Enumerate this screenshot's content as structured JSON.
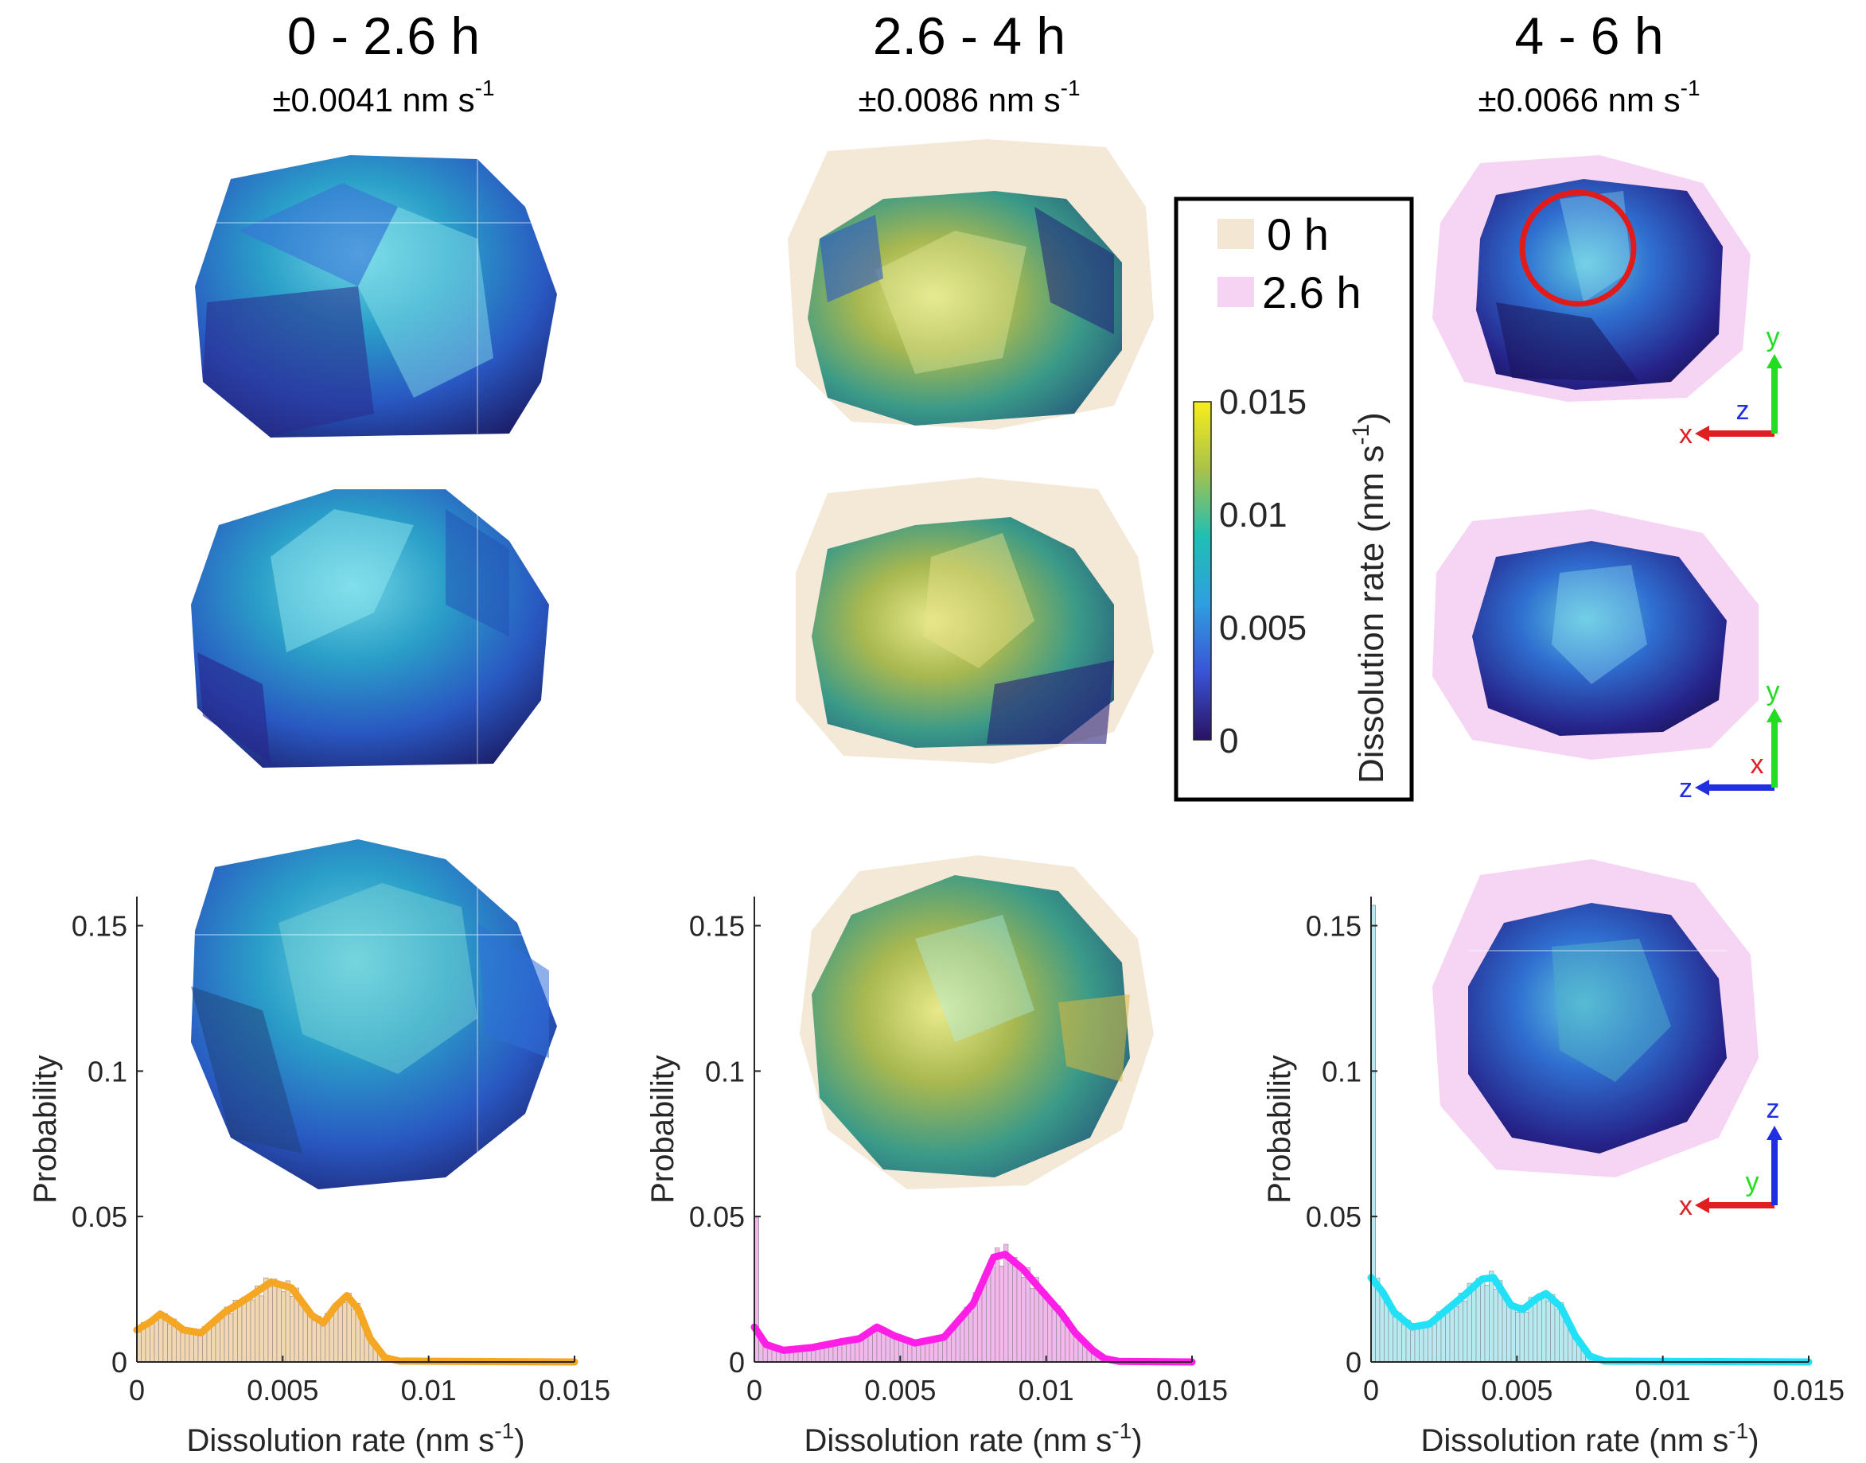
{
  "columns": [
    {
      "title": "0 - 2.6 h",
      "uncertainty": "±0.0041 nm s",
      "uncertainty_exp": "-1"
    },
    {
      "title": "2.6 - 4 h",
      "uncertainty": "±0.0086 nm s",
      "uncertainty_exp": "-1"
    },
    {
      "title": "4 - 6 h",
      "uncertainty": "±0.0066 nm s",
      "uncertainty_exp": "-1"
    }
  ],
  "legend": {
    "items": [
      {
        "label": "0 h",
        "color": "#f3e6d3"
      },
      {
        "label": "2.6 h",
        "color": "#f6d2f3"
      }
    ],
    "colorbar": {
      "title": "Dissolution rate (nm s",
      "title_exp": "-1",
      "title_close": ")",
      "ticks": [
        "0.015",
        "0.01",
        "0.005",
        "0"
      ]
    }
  },
  "axes_icons": [
    {
      "h_label": "x",
      "v_label": "y",
      "c_label": "z",
      "h_color": "#e02020",
      "v_color": "#22dd22",
      "c_color": "#2030e0"
    },
    {
      "h_label": "z",
      "v_label": "y",
      "c_label": "x",
      "h_color": "#2030e0",
      "v_color": "#22dd22",
      "c_color": "#e02020"
    },
    {
      "h_label": "x",
      "v_label": "z",
      "c_label": "y",
      "h_color": "#e02020",
      "v_color": "#2030e0",
      "c_color": "#22dd22"
    }
  ],
  "chart_data": [
    {
      "type": "histogram",
      "title": "0 - 2.6 h",
      "xlabel": "Dissolution rate (nm s",
      "xlabel_exp": "-1",
      "xlabel_close": ")",
      "ylabel": "Probability",
      "xlim": [
        0,
        0.015
      ],
      "ylim": [
        0,
        0.16
      ],
      "xticks": [
        "0",
        "0.005",
        "0.01",
        "0.015"
      ],
      "yticks": [
        "0",
        "0.05",
        "0.1",
        "0.15"
      ],
      "bar_color": "#f2d7b2",
      "curve_color": "#f5a623",
      "curve": [
        [
          0,
          0.011
        ],
        [
          0.0005,
          0.014
        ],
        [
          0.0008,
          0.0165
        ],
        [
          0.0012,
          0.014
        ],
        [
          0.0016,
          0.011
        ],
        [
          0.0022,
          0.01
        ],
        [
          0.003,
          0.017
        ],
        [
          0.0038,
          0.022
        ],
        [
          0.0046,
          0.0275
        ],
        [
          0.0053,
          0.0255
        ],
        [
          0.006,
          0.016
        ],
        [
          0.0064,
          0.0135
        ],
        [
          0.0068,
          0.019
        ],
        [
          0.0072,
          0.0228
        ],
        [
          0.0076,
          0.018
        ],
        [
          0.008,
          0.008
        ],
        [
          0.0085,
          0.0015
        ],
        [
          0.009,
          0.0003
        ],
        [
          0.015,
          0
        ]
      ]
    },
    {
      "type": "histogram",
      "title": "2.6 - 4 h",
      "xlabel": "Dissolution rate (nm s",
      "xlabel_exp": "-1",
      "xlabel_close": ")",
      "ylabel": "Probability",
      "xlim": [
        0,
        0.015
      ],
      "ylim": [
        0,
        0.16
      ],
      "xticks": [
        "0",
        "0.005",
        "0.01",
        "0.015"
      ],
      "yticks": [
        "0",
        "0.05",
        "0.1",
        "0.15"
      ],
      "bar_color": "#f0b8ec",
      "curve_color": "#ff1ee6",
      "spike": [
        0,
        0.05
      ],
      "curve": [
        [
          0,
          0.012
        ],
        [
          0.0004,
          0.006
        ],
        [
          0.001,
          0.004
        ],
        [
          0.002,
          0.005
        ],
        [
          0.003,
          0.007
        ],
        [
          0.0036,
          0.008
        ],
        [
          0.0042,
          0.012
        ],
        [
          0.0048,
          0.009
        ],
        [
          0.0055,
          0.0065
        ],
        [
          0.0065,
          0.0085
        ],
        [
          0.0075,
          0.02
        ],
        [
          0.0082,
          0.036
        ],
        [
          0.0086,
          0.037
        ],
        [
          0.0092,
          0.032
        ],
        [
          0.0098,
          0.025
        ],
        [
          0.0105,
          0.017
        ],
        [
          0.011,
          0.01
        ],
        [
          0.0116,
          0.004
        ],
        [
          0.012,
          0.0012
        ],
        [
          0.0125,
          0.0002
        ],
        [
          0.015,
          0
        ]
      ]
    },
    {
      "type": "histogram",
      "title": "4 - 6 h",
      "xlabel": "Dissolution rate (nm s",
      "xlabel_exp": "-1",
      "xlabel_close": ")",
      "ylabel": "Probability",
      "xlim": [
        0,
        0.015
      ],
      "ylim": [
        0,
        0.16
      ],
      "xticks": [
        "0",
        "0.005",
        "0.01",
        "0.015"
      ],
      "yticks": [
        "0",
        "0.05",
        "0.1",
        "0.15"
      ],
      "bar_color": "#b6eaf0",
      "curve_color": "#22e0f5",
      "spike": [
        0,
        0.157
      ],
      "curve": [
        [
          0,
          0.029
        ],
        [
          0.0004,
          0.024
        ],
        [
          0.0008,
          0.017
        ],
        [
          0.0014,
          0.012
        ],
        [
          0.002,
          0.013
        ],
        [
          0.0026,
          0.018
        ],
        [
          0.0032,
          0.023
        ],
        [
          0.0038,
          0.0285
        ],
        [
          0.0042,
          0.029
        ],
        [
          0.0048,
          0.0195
        ],
        [
          0.0052,
          0.018
        ],
        [
          0.0057,
          0.022
        ],
        [
          0.006,
          0.0235
        ],
        [
          0.0065,
          0.019
        ],
        [
          0.007,
          0.009
        ],
        [
          0.0075,
          0.002
        ],
        [
          0.008,
          0.0003
        ],
        [
          0.015,
          0
        ]
      ]
    }
  ]
}
